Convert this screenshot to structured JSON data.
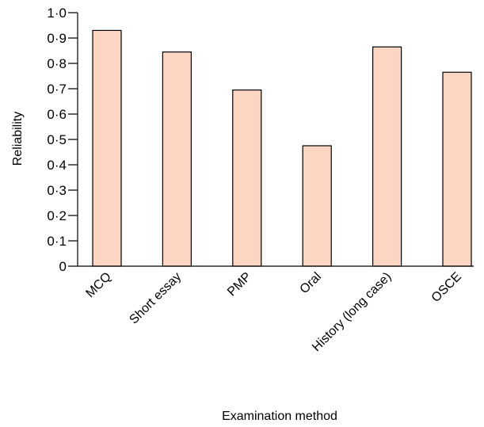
{
  "chart_data": {
    "type": "bar",
    "title": "",
    "xlabel": "Examination method",
    "ylabel": "Reliability",
    "categories": [
      "MCQ",
      "Short essay",
      "PMP",
      "Oral",
      "History (long case)",
      "OSCE"
    ],
    "values": [
      0.93,
      0.845,
      0.695,
      0.475,
      0.865,
      0.765
    ],
    "ylim": [
      0,
      1.0
    ],
    "yticks": [
      0,
      0.1,
      0.2,
      0.3,
      0.4,
      0.5,
      0.6,
      0.7,
      0.8,
      0.9,
      1.0
    ],
    "ytick_labels": [
      "0",
      "0·1",
      "0·2",
      "0·3",
      "0·4",
      "0·5",
      "0·6",
      "0·7",
      "0·8",
      "0·9",
      "1·0"
    ],
    "grid": false,
    "legend": "none",
    "colors": {
      "bar_fill": "#fcd5c3",
      "bar_stroke": "#000000",
      "axis": "#000000"
    }
  }
}
